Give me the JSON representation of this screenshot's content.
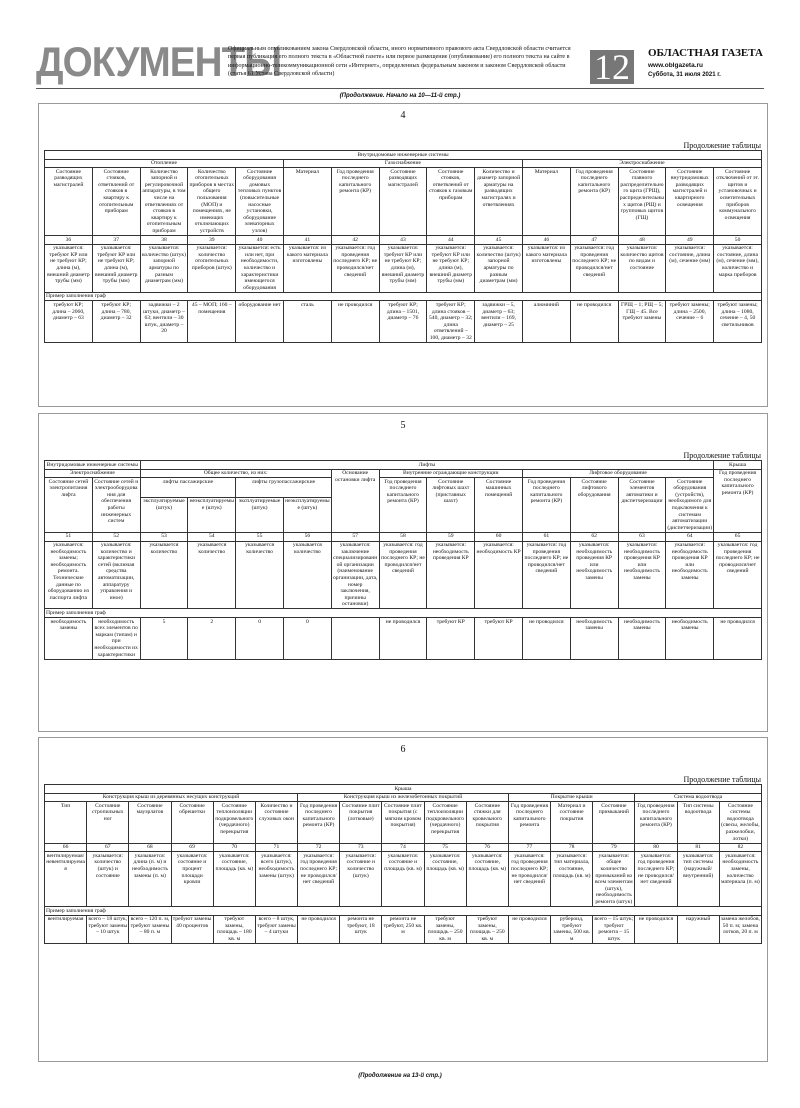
{
  "header": {
    "title": "ДОКУМЕНТЫ",
    "notice": "Официальным опубликованием закона Свердловской области, иного нормативного правового акта Свердловской области считается первая публикация его полного текста в «Областной газете» или первое размещение (опубликование) его полного текста на сайте в информационно-телекоммуникационной сети «Интернет», определенных федеральным законом и законом Свердловской области (статья 61 Устава Свердловской области)",
    "page_number": "12",
    "paper_name": "ОБЛАСТНАЯ ГАЗЕТА",
    "site": "www.oblgazeta.ru",
    "date": "Суббота, 31 июля 2021 г."
  },
  "continued_from": "(Продолжение. Начало на 10—11-й стр.)",
  "continued_to": "(Продолжение на 13-й стр.)",
  "tables": [
    {
      "page": "4",
      "caption": "Продолжение таблицы",
      "head": [
        [
          "Внутридомовые инженерные системы"
        ],
        [
          "Отопление",
          "Газоснабжение",
          "Электроснабжение"
        ],
        [
          "Состояние разводящих магистралей",
          "Состояние стояков, ответвлений от стояков в квартиру к отопительным приборам",
          "Количество запорной и регулировочной аппаратуры, в том числе на ответвлениях от стояков в квартиру к отопительным приборам",
          "Количество отопительных приборов в местах общего пользования (МОП) и помещениях, не имеющих отключающих устройств",
          "Состояние оборудования домовых тепловых пунктов (повысительные насосные установки, оборудование элеваторных узлов)",
          "Материал",
          "Год проведения последнего капитального ремонта (КР)",
          "Состояние разводящих магистралей",
          "Состояние стояков, ответвлений от стояков к газовым приборам",
          "Количество и диаметр запорной арматуры на разводящих магистралях и ответвлениях",
          "Материал",
          "Год проведения последнего капитального ремонта (КР)",
          "Состояние главного распределительного щита (ГРЩ), распределительных щитов (РЩ) и групповых щитов (ГЩ)",
          "Состояние внутридомовых разводящих магистралей и квартирного освещения",
          "Состояние отключений от эт. щитов и установочных и осветительных приборов коммунального освещения"
        ]
      ],
      "numbers": [
        36,
        37,
        38,
        39,
        40,
        41,
        42,
        43,
        44,
        45,
        46,
        47,
        48,
        49,
        50
      ],
      "descriptions": [
        "указывается: требуют КР или не требуют КР; длина (м), внешний диаметр трубы (мм)",
        "указывается: требуют КР или не требуют КР; длина (м), внешний диаметр трубы (мм)",
        "указывается: количество (штук) запорной арматуры по разным диаметрам (мм)",
        "указывается: количество отопительных приборов (штук)",
        "указывается: есть или нет, при необходимости, количество и характеристики имеющегося оборудования",
        "указывается: из какого материала изготовлены",
        "указывается: год проведения последнего КР; не проводился/нет сведений",
        "указывается: требуют КР или не требуют КР; длина (м), внешний диаметр трубы (мм)",
        "указывается: требуют КР или не требуют КР; длина (м), внешний диаметр трубы (мм)",
        "указывается: количество (штук) запорной арматуры по разным диаметрам (мм)",
        "указывается: из какого материала изготовлены",
        "указывается: год проведения последнего КР; не проводился/нет сведений",
        "указывается: количество щитов по видам и состояние",
        "указывается: состояние, длина (м), сечение (мм)",
        "указывается: состояние, длина (м), сечение (мм), количество и марка приборов"
      ],
      "example_label": "Пример заполнения граф",
      "examples": [
        "требуют КР; длина – 2060, диаметр – 63",
        "требуют КР; длина – 780, диаметр – 32",
        "задвижки – 2 штуки, диаметр – 63; вентили – 30 штук, диаметр – 20",
        "45 – МОП; 160 – помещения",
        "оборудование нет",
        "сталь",
        "не проводился",
        "требуют КР; длина – 1501, диаметр – 76",
        "требуют КР; длина стояков – 540, диаметр – 32; длина ответвлений – 100, диаметр – 32",
        "задвижки – 5, диаметр – 63; вентили – 169, диаметр – 25",
        "алюминий",
        "не проводился",
        "ГРЩ – 1; РЩ – 5; ГЩ – 45. Все требуют замены",
        "требуют замены; длина – 2500, сечение – 6",
        "требуют замены; длина – 1080, сечение – 4, 50 светильников"
      ]
    },
    {
      "page": "5",
      "caption": "Продолжение таблицы",
      "head": [
        [
          "Внутридомовые инженерные системы",
          "Лифты",
          "Крыша"
        ],
        [
          "Электроснабжение",
          "Общее количество, из них:",
          "Основание остановки лифта",
          "Внутренние ограждающие конструкции",
          "Лифтовое оборудование",
          "Год проведения последнего капитального ремонта (КР)"
        ],
        [
          "Состояние сетей электропитания лифта",
          "Состояние сетей и электрооборудования для обеспечения работы инженерных систем",
          "лифты пассажирские",
          "лифты грузопассажирские",
          "Год проведения последнего капитального ремонта (КР)",
          "Состояние лифтовых шахт (приставных шахт)",
          "Состояние машинных помещений",
          "Год проведения последнего капитального ремонта (КР)",
          "Состояние лифтового оборудования",
          "Состояние элементов автоматики и диспетчеризации",
          "Состояние оборудования (устройств), необходимого для подключения к системам автоматизации (диспетчеризации)"
        ],
        [
          "эксплуатируемые (штук)",
          "неэксплуатируемые (штук)",
          "эксплуатируемые (штук)",
          "неэксплуатируемые (штук)"
        ]
      ],
      "numbers": [
        51,
        52,
        53,
        54,
        55,
        56,
        57,
        58,
        59,
        60,
        61,
        62,
        63,
        64,
        65
      ],
      "descriptions": [
        "указывается: необходимость замены; необходимость ремонта. Технические данные по оборудованию из паспорта лифта",
        "указывается: количество и характеристики сетей (включая средства автоматизации, аппаратуру управления и иное)",
        "указывается количество",
        "указывается количество",
        "указывается количество",
        "указывается количество",
        "указывается: заключение специализированной организации (наименование организации, дата, номер заключения, причины остановки)",
        "указывается: год проведения последнего КР; не проводился/нет сведений",
        "указывается: необходимость проведения КР",
        "указывается: необходимость КР",
        "указывается: год проведения последнего КР; не проводился/нет сведений",
        "указывается: необходимость проведения КР или необходимость замены",
        "указывается: необходимость проведения КР или необходимость замены",
        "указывается: необходимость проведения КР или необходимость замены",
        "указывается: год проведения последнего КР; не проводился/нет сведений"
      ],
      "example_label": "Пример заполнения граф",
      "examples": [
        "необходимость замены",
        "необходимость всех элементов по маркам (типам) и при необходимости их характеристики",
        "5",
        "2",
        "0",
        "0",
        null,
        "не проводился",
        "требуют КР",
        "требуют КР",
        "не проводился",
        "необходимость замены",
        "необходимость замены",
        "необходимость замены",
        "не проводился"
      ]
    },
    {
      "page": "6",
      "caption": "Продолжение таблицы",
      "head": [
        [
          "Крыша"
        ],
        [
          "Конструкция крыш из деревянных несущих конструкций",
          "Конструкция крыш из железобетонных покрытий",
          "Покрытие крыши",
          "Система водоотвода"
        ],
        [
          "Тип",
          "Состояние стропильных ног",
          "Состояние мауэрлатов",
          "Состояние обрешетки",
          "Состояние теплоизоляции подкровельного (чердачного) перекрытия",
          "Количество и состояние слуховых окон",
          "Год проведения последнего капитального ремонта (КР)",
          "Состояние плит покрытия (лотковые)",
          "Состояние плит покрытия (с мягким кровом покрытия)",
          "Состояние теплоизоляции подкровельного (чердачного) перекрытия",
          "Состояние стяжки для кровельного покрытия",
          "Год проведения последнего капитального ремонта",
          "Материал и состояние покрытия",
          "Состояние примыканий",
          "Год проведения последнего капитального ремонта (КР)",
          "Тип системы водоотвода",
          "Состояние системы водоотвода (свесы, желобы, разжелобки, лотки)"
        ]
      ],
      "numbers": [
        66,
        67,
        68,
        69,
        70,
        71,
        72,
        73,
        74,
        75,
        76,
        77,
        78,
        79,
        80,
        81,
        82
      ],
      "descriptions": [
        "вентилируемая/невентилируемая",
        "указывается: количество (штук) и состояние",
        "указывается: длина (п. м) и необходимость замены (п. м)",
        "указывается: состояние и процент площади кровли",
        "указывается: состояние, площадь (кв. м)",
        "указывается: всего (штук), необходимость замены (штук)",
        "указывается: год проведения последнего КР; не проводился/нет сведений",
        "указывается: состояние и количество (штук)",
        "указывается: состояние и площадь (кв. м)",
        "указывается: состояние, площадь (кв. м)",
        "указывается: состояние, площадь (кв. м)",
        "указывается: год проведения последнего КР; не проводился/нет сведений",
        "указывается: тип материала, состояние, площадь (кв. м)",
        "указывается: общее количество примыканий ко всем элементам (штук), необходимость ремонта (штук)",
        "указывается: год проведения последнего КР; не проводился/нет сведений",
        "указывается: тип системы (наружный/внутренний)",
        "указывается: необходимость замены, количество материала (п. м)"
      ],
      "example_label": "Пример заполнения граф",
      "examples": [
        "вентилируемая",
        "всего – 18 штук, требуют замены – 10 штук",
        "всего – 120 п. м, требуют замены – 80 п. м",
        "требуют замены 40 процентов",
        "требуют замены, площадь – 180 кв. м",
        "всего – 8 штук, требуют замены – 4 штуки",
        "не проводился",
        "ремонта не требуют, 18 штук",
        "ремонта не требуют, 250 кв. м",
        "требуют замены, площадь – 250 кв. м",
        "требуют замены, площадь – 250 кв. м",
        "не проводился",
        "рубероид, требуют замены, 500 кв. м",
        "всего – 15 штук; требуют ремонта – 15 штук",
        "не проводился",
        "наружный",
        "замена желобов, 50 п. м; замена лотков, 20 п. м"
      ]
    }
  ]
}
